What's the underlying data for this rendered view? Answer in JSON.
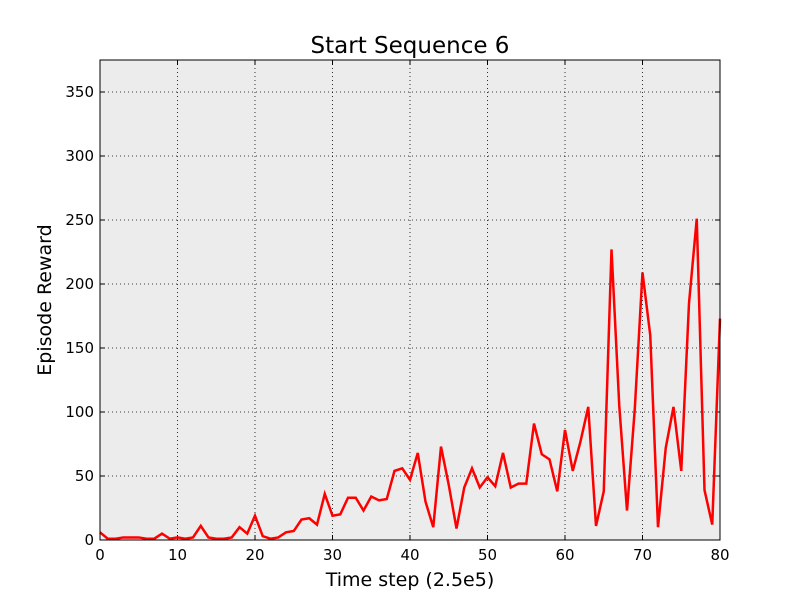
{
  "chart_data": {
    "type": "line",
    "title": "Start Sequence 6",
    "xlabel": "Time step (2.5e5)",
    "ylabel": "Episode Reward",
    "xlim": [
      0,
      80
    ],
    "ylim": [
      0,
      375
    ],
    "xticks": [
      0,
      10,
      20,
      30,
      40,
      50,
      60,
      70,
      80
    ],
    "yticks": [
      0,
      50,
      100,
      150,
      200,
      250,
      300,
      350
    ],
    "grid": true,
    "plot_background": "#ececec",
    "series": [
      {
        "color": "#ff0000",
        "x": [
          0,
          1,
          2,
          3,
          4,
          5,
          6,
          7,
          8,
          9,
          10,
          11,
          12,
          13,
          14,
          15,
          16,
          17,
          18,
          19,
          20,
          21,
          22,
          23,
          24,
          25,
          26,
          27,
          28,
          29,
          30,
          31,
          32,
          33,
          34,
          35,
          36,
          37,
          38,
          39,
          40,
          41,
          42,
          43,
          44,
          45,
          46,
          47,
          48,
          49,
          50,
          51,
          52,
          53,
          54,
          55,
          56,
          57,
          58,
          59,
          60,
          61,
          62,
          63,
          64,
          65,
          66,
          67,
          68,
          69,
          70,
          71,
          72,
          73,
          74,
          75,
          76,
          77,
          78,
          79,
          80
        ],
        "y": [
          6,
          1,
          1,
          2,
          2,
          2,
          1,
          1,
          5,
          1,
          2,
          1,
          2,
          11,
          2,
          1,
          1,
          2,
          10,
          5,
          19,
          3,
          1,
          2,
          6,
          7,
          16,
          17,
          12,
          36,
          19,
          20,
          33,
          33,
          23,
          34,
          31,
          32,
          54,
          56,
          47,
          68,
          30,
          10,
          73,
          43,
          9,
          41,
          56,
          41,
          49,
          42,
          68,
          41,
          44,
          44,
          91,
          67,
          63,
          38,
          86,
          54,
          77,
          104,
          11,
          38,
          227,
          105,
          23,
          102,
          209,
          160,
          10,
          72,
          104,
          54,
          185,
          251,
          39,
          12,
          173
        ]
      }
    ]
  }
}
